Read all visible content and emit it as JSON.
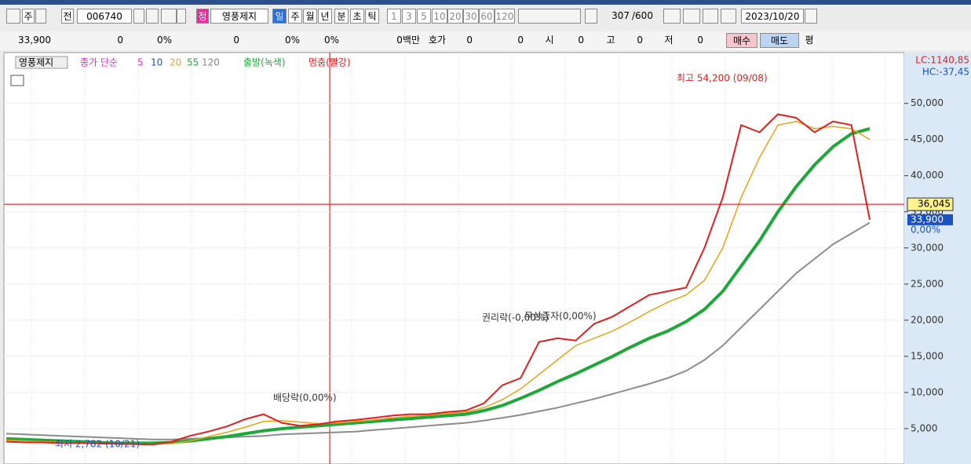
{
  "toolbar": {
    "items": [
      "주",
      "전",
      "006740",
      "정",
      "영풍제지",
      "일",
      "주",
      "월",
      "년",
      "분",
      "초",
      "틱",
      "1",
      "3",
      "5",
      "10",
      "20",
      "30",
      "60",
      "120",
      "307",
      "/600",
      "2023/10/20"
    ]
  },
  "info_bar": {
    "items": [
      "33,900",
      "0",
      "0%",
      "0",
      "0%",
      "0%",
      "0백만",
      "호가",
      "0",
      "0",
      "시",
      "0",
      "고",
      "0",
      "저",
      "0",
      "매수",
      "매도",
      "평"
    ]
  },
  "chart": {
    "legend": [
      "영풍제지",
      "종가 단순",
      "5",
      "10",
      "20",
      "55",
      "120",
      "출발(녹색)",
      "멈춤(빨강)"
    ],
    "ylim": [
      0,
      56700
    ],
    "yticks": [
      {
        "value": 5000,
        "label": "5,000"
      },
      {
        "value": 10000,
        "label": "10,000"
      },
      {
        "value": 15000,
        "label": "15,000"
      },
      {
        "value": 20000,
        "label": "20,000"
      },
      {
        "value": 25000,
        "label": "25,000"
      },
      {
        "value": 30000,
        "label": "30,000"
      },
      {
        "value": 35000,
        "label": "35,000"
      },
      {
        "value": 40000,
        "label": "40,000"
      },
      {
        "value": 45000,
        "label": "45,000"
      },
      {
        "value": 50000,
        "label": "50,000"
      }
    ],
    "series": [
      {
        "color": "#8c8c8c",
        "values": [
          4300,
          4200,
          4100,
          4000,
          3900,
          3800,
          3700,
          3600,
          3500,
          3500,
          3600,
          3700,
          3800,
          3900,
          4000,
          4200,
          4300,
          4400,
          4500,
          4600,
          4800,
          5000,
          5200,
          5400,
          5600,
          5800,
          6100,
          6500,
          6900,
          7400,
          7900,
          8500,
          9100,
          9800,
          10500,
          11200,
          12000,
          13000,
          14500,
          16500,
          19000,
          21500,
          24000,
          26500,
          28500,
          30500,
          32000,
          33500
        ]
      },
      {
        "color": "#1fa83a",
        "values": [
          3600,
          3500,
          3400,
          3300,
          3200,
          3100,
          3000,
          3000,
          3000,
          3100,
          3300,
          3600,
          3900,
          4300,
          4700,
          5000,
          5200,
          5400,
          5600,
          5800,
          6000,
          6200,
          6400,
          6600,
          6800,
          7000,
          7500,
          8200,
          9200,
          10300,
          11500,
          12600,
          13800,
          15000,
          16300,
          17500,
          18500,
          19800,
          21500,
          24000,
          27500,
          31000,
          35000,
          38500,
          41500,
          44000,
          45800,
          46500
        ]
      },
      {
        "color": "#e8a317",
        "values": [
          3400,
          3300,
          3200,
          3100,
          3000,
          2950,
          2900,
          2870,
          2850,
          2900,
          3300,
          3900,
          4500,
          5200,
          6000,
          6100,
          5900,
          5700,
          5800,
          6000,
          6200,
          6500,
          6700,
          6900,
          7100,
          7300,
          7900,
          9000,
          10500,
          12500,
          14500,
          16500,
          17500,
          18500,
          19800,
          21200,
          22500,
          23500,
          25500,
          30000,
          37000,
          42500,
          47000,
          47500,
          46500,
          46800,
          46500,
          45000
        ]
      },
      {
        "color": "#e02020",
        "values": [
          3200,
          3100,
          3100,
          3000,
          3000,
          2950,
          2900,
          2850,
          2800,
          3200,
          4000,
          4600,
          5300,
          6300,
          7000,
          5800,
          5400,
          5600,
          6000,
          6200,
          6500,
          6800,
          7000,
          7000,
          7300,
          7500,
          8500,
          11000,
          12000,
          17000,
          17500,
          17200,
          19500,
          20500,
          22000,
          23500,
          24000,
          24500,
          30000,
          37000,
          47000,
          46000,
          48500,
          48000,
          46000,
          47500,
          47000,
          33900
        ]
      }
    ],
    "annotations": [
      "최고 54,200 (09/08)",
      "최저 2,782 (10/21)",
      "배당락(0,00%)",
      "권리락(-0,00%)",
      "무상증자(0,00%)"
    ],
    "crosshair": {
      "value": 36045,
      "label": "36,045"
    },
    "price": {
      "value": 33900,
      "label": "33,900"
    },
    "change": "0,00%",
    "lc": "LC:1140,85",
    "hc": "HC:-37,45"
  }
}
